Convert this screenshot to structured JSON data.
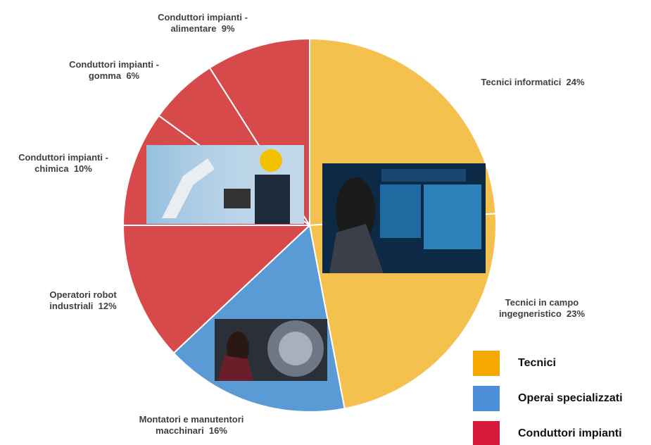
{
  "chart_data": {
    "type": "pie",
    "categories": [
      "Tecnici informatici",
      "Tecnici in campo ingegneristico",
      "Montatori e manutentori macchinari",
      "Operatori robot industriali",
      "Conduttori impianti - chimica",
      "Conduttori impianti - gomma",
      "Conduttori impianti - alimentare"
    ],
    "values": [
      24,
      23,
      16,
      12,
      10,
      6,
      9
    ],
    "value_labels": [
      "24%",
      "23%",
      "16%",
      "12%",
      "10%",
      "6%",
      "9%"
    ],
    "colors": [
      "#f4c14e",
      "#f4c14e",
      "#5b9bd5",
      "#d64a4b",
      "#d64a4b",
      "#d64a4b",
      "#d64a4b"
    ],
    "legend": [
      {
        "name": "Tecnici",
        "color": "#f5a800"
      },
      {
        "name": "Operai specializzati",
        "color": "#4a8fd8"
      },
      {
        "name": "Conduttori impianti",
        "color": "#d51a3b"
      }
    ]
  }
}
